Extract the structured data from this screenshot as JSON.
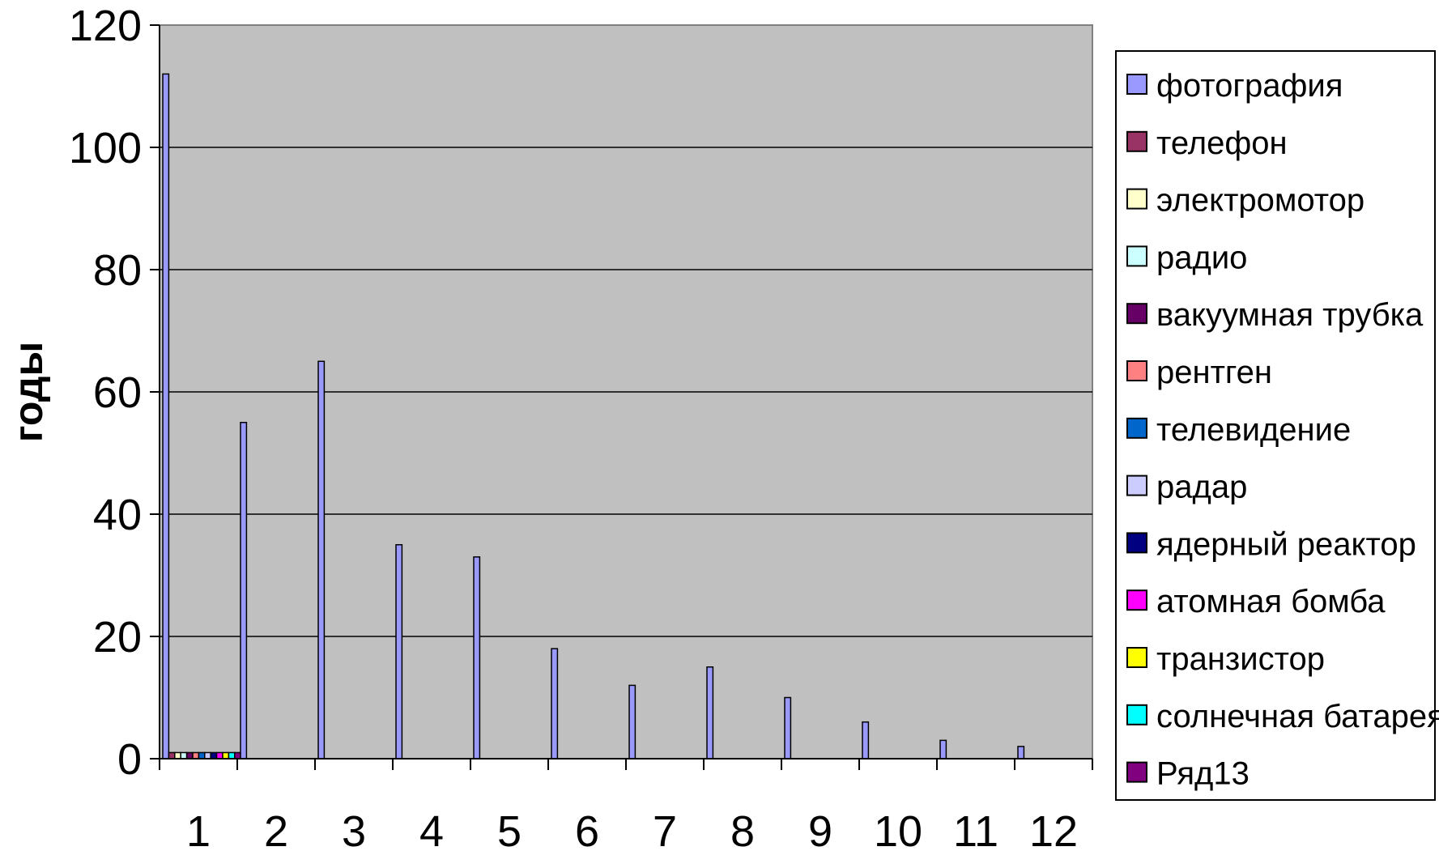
{
  "chart_data": {
    "type": "bar",
    "title": "",
    "xlabel": "",
    "ylabel": "годы",
    "ylim": [
      0,
      120
    ],
    "y_ticks": [
      0,
      20,
      40,
      60,
      80,
      100,
      120
    ],
    "categories": [
      "1",
      "2",
      "3",
      "4",
      "5",
      "6",
      "7",
      "8",
      "9",
      "10",
      "11",
      "12"
    ],
    "grid": true,
    "legend_position": "right",
    "plot_background": "#c0c0c0",
    "series": [
      {
        "name": "фотография",
        "color": "#9999ff",
        "values": [
          112,
          55,
          65,
          35,
          33,
          18,
          12,
          15,
          10,
          6,
          3,
          2
        ]
      },
      {
        "name": "телефон",
        "color": "#993366",
        "values": [
          1,
          0,
          0,
          0,
          0,
          0,
          0,
          0,
          0,
          0,
          0,
          0
        ]
      },
      {
        "name": "электромотор",
        "color": "#ffffcc",
        "values": [
          1,
          0,
          0,
          0,
          0,
          0,
          0,
          0,
          0,
          0,
          0,
          0
        ]
      },
      {
        "name": "радио",
        "color": "#ccffff",
        "values": [
          1,
          0,
          0,
          0,
          0,
          0,
          0,
          0,
          0,
          0,
          0,
          0
        ]
      },
      {
        "name": "вакуумная трубка",
        "color": "#660066",
        "values": [
          1,
          0,
          0,
          0,
          0,
          0,
          0,
          0,
          0,
          0,
          0,
          0
        ]
      },
      {
        "name": "рентген",
        "color": "#ff8080",
        "values": [
          1,
          0,
          0,
          0,
          0,
          0,
          0,
          0,
          0,
          0,
          0,
          0
        ]
      },
      {
        "name": "телевидение",
        "color": "#0066cc",
        "values": [
          1,
          0,
          0,
          0,
          0,
          0,
          0,
          0,
          0,
          0,
          0,
          0
        ]
      },
      {
        "name": "радар",
        "color": "#ccccff",
        "values": [
          1,
          0,
          0,
          0,
          0,
          0,
          0,
          0,
          0,
          0,
          0,
          0
        ]
      },
      {
        "name": "ядерный реактор",
        "color": "#000080",
        "values": [
          1,
          0,
          0,
          0,
          0,
          0,
          0,
          0,
          0,
          0,
          0,
          0
        ]
      },
      {
        "name": "атомная бомба",
        "color": "#ff00ff",
        "values": [
          1,
          0,
          0,
          0,
          0,
          0,
          0,
          0,
          0,
          0,
          0,
          0
        ]
      },
      {
        "name": "транзистор",
        "color": "#ffff00",
        "values": [
          1,
          0,
          0,
          0,
          0,
          0,
          0,
          0,
          0,
          0,
          0,
          0
        ]
      },
      {
        "name": "солнечная батарея",
        "color": "#00ffff",
        "values": [
          1,
          0,
          0,
          0,
          0,
          0,
          0,
          0,
          0,
          0,
          0,
          0
        ]
      },
      {
        "name": "Ряд13",
        "color": "#800080",
        "values": [
          1,
          0,
          0,
          0,
          0,
          0,
          0,
          0,
          0,
          0,
          0,
          0
        ]
      }
    ]
  }
}
